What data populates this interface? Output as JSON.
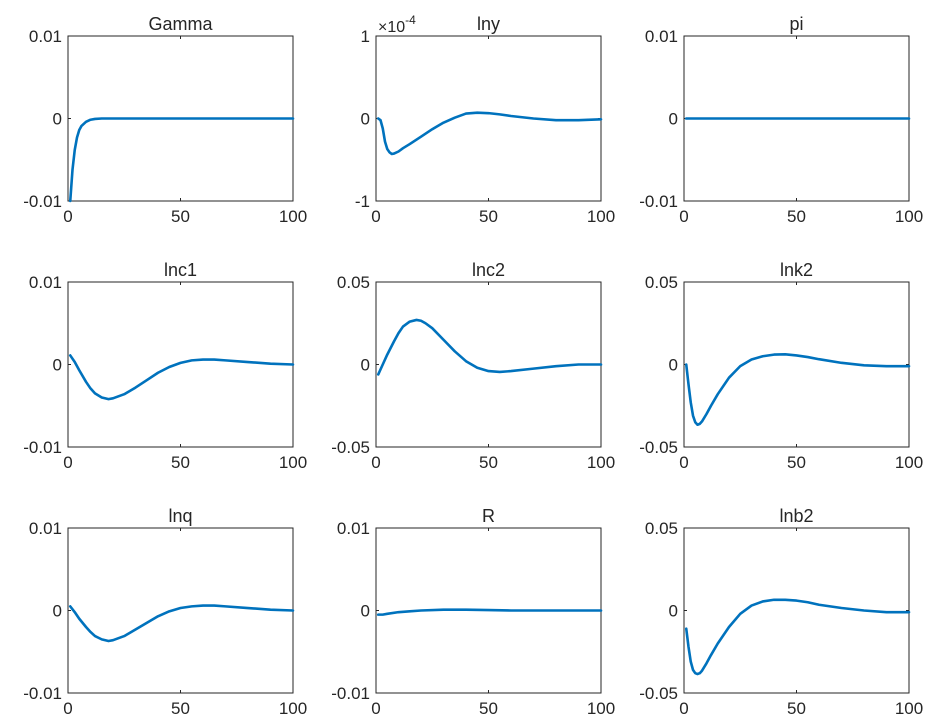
{
  "chart_data": [
    {
      "type": "line",
      "title": "Gamma",
      "xlim": [
        0,
        100
      ],
      "ylim": [
        -0.01,
        0.01
      ],
      "xticks": [
        0,
        50,
        100
      ],
      "xtick_labels": [
        "0",
        "50",
        "100"
      ],
      "yticks": [
        -0.01,
        0,
        0.01
      ],
      "ytick_labels": [
        "-0.01",
        "0",
        "0.01"
      ],
      "exponent_label": null,
      "x": [
        1,
        2,
        3,
        4,
        5,
        6,
        8,
        10,
        12,
        15,
        20,
        30,
        50,
        75,
        100
      ],
      "y": [
        -0.01,
        -0.0062,
        -0.0038,
        -0.0023,
        -0.0014,
        -0.0009,
        -0.0004,
        -0.00015,
        -5e-05,
        0,
        0,
        0,
        0,
        0,
        0
      ]
    },
    {
      "type": "line",
      "title": "lny",
      "xlim": [
        0,
        100
      ],
      "ylim": [
        -1,
        1
      ],
      "xticks": [
        0,
        50,
        100
      ],
      "xtick_labels": [
        "0",
        "50",
        "100"
      ],
      "yticks": [
        -1,
        0,
        1
      ],
      "ytick_labels": [
        "-1",
        "0",
        "1"
      ],
      "exponent_label": {
        "base": "×10",
        "power": "-4"
      },
      "x": [
        1,
        2,
        3,
        4,
        5,
        6,
        7,
        8,
        10,
        12,
        15,
        20,
        25,
        30,
        35,
        40,
        45,
        50,
        55,
        60,
        70,
        80,
        90,
        100
      ],
      "y": [
        0,
        -0.02,
        -0.12,
        -0.28,
        -0.37,
        -0.41,
        -0.43,
        -0.425,
        -0.4,
        -0.36,
        -0.31,
        -0.22,
        -0.13,
        -0.05,
        0.01,
        0.06,
        0.07,
        0.065,
        0.05,
        0.03,
        0.0,
        -0.02,
        -0.02,
        -0.01
      ]
    },
    {
      "type": "line",
      "title": "pi",
      "xlim": [
        0,
        100
      ],
      "ylim": [
        -0.01,
        0.01
      ],
      "xticks": [
        0,
        50,
        100
      ],
      "xtick_labels": [
        "0",
        "50",
        "100"
      ],
      "yticks": [
        -0.01,
        0,
        0.01
      ],
      "ytick_labels": [
        "-0.01",
        "0",
        "0.01"
      ],
      "exponent_label": null,
      "x": [
        1,
        25,
        50,
        75,
        100
      ],
      "y": [
        0,
        0,
        0,
        0,
        0
      ]
    },
    {
      "type": "line",
      "title": "lnc1",
      "xlim": [
        0,
        100
      ],
      "ylim": [
        -0.01,
        0.01
      ],
      "xticks": [
        0,
        50,
        100
      ],
      "xtick_labels": [
        "0",
        "50",
        "100"
      ],
      "yticks": [
        -0.01,
        0,
        0.01
      ],
      "ytick_labels": [
        "-0.01",
        "0",
        "0.01"
      ],
      "exponent_label": null,
      "x": [
        1,
        3,
        5,
        8,
        10,
        12,
        15,
        18,
        20,
        25,
        30,
        35,
        40,
        45,
        50,
        55,
        60,
        65,
        70,
        80,
        90,
        100
      ],
      "y": [
        0.0011,
        0.0003,
        -0.0007,
        -0.0021,
        -0.0029,
        -0.0035,
        -0.004,
        -0.0042,
        -0.0041,
        -0.0036,
        -0.0028,
        -0.0019,
        -0.001,
        -0.0003,
        0.0002,
        0.0005,
        0.0006,
        0.0006,
        0.0005,
        0.0003,
        0.0001,
        0.0
      ]
    },
    {
      "type": "line",
      "title": "lnc2",
      "xlim": [
        0,
        100
      ],
      "ylim": [
        -0.05,
        0.05
      ],
      "xticks": [
        0,
        50,
        100
      ],
      "xtick_labels": [
        "0",
        "50",
        "100"
      ],
      "yticks": [
        -0.05,
        0,
        0.05
      ],
      "ytick_labels": [
        "-0.05",
        "0",
        "0.05"
      ],
      "exponent_label": null,
      "x": [
        1,
        3,
        5,
        8,
        10,
        12,
        15,
        18,
        20,
        22,
        25,
        30,
        35,
        40,
        45,
        50,
        55,
        60,
        70,
        80,
        90,
        100
      ],
      "y": [
        -0.006,
        0.0,
        0.006,
        0.014,
        0.019,
        0.023,
        0.026,
        0.027,
        0.0265,
        0.025,
        0.022,
        0.015,
        0.008,
        0.002,
        -0.002,
        -0.004,
        -0.0045,
        -0.004,
        -0.0025,
        -0.001,
        0.0,
        0.0
      ]
    },
    {
      "type": "line",
      "title": "lnk2",
      "xlim": [
        0,
        100
      ],
      "ylim": [
        -0.05,
        0.05
      ],
      "xticks": [
        0,
        50,
        100
      ],
      "xtick_labels": [
        "0",
        "50",
        "100"
      ],
      "yticks": [
        -0.05,
        0,
        0.05
      ],
      "ytick_labels": [
        "-0.05",
        "0",
        "0.05"
      ],
      "exponent_label": null,
      "x": [
        1,
        2,
        3,
        4,
        5,
        6,
        7,
        8,
        10,
        12,
        15,
        20,
        25,
        30,
        35,
        40,
        45,
        50,
        55,
        60,
        70,
        80,
        90,
        100
      ],
      "y": [
        0.0,
        -0.012,
        -0.023,
        -0.031,
        -0.035,
        -0.0365,
        -0.036,
        -0.0345,
        -0.03,
        -0.025,
        -0.018,
        -0.008,
        -0.001,
        0.003,
        0.005,
        0.006,
        0.0062,
        0.0055,
        0.0045,
        0.0032,
        0.001,
        -0.0005,
        -0.001,
        -0.001
      ]
    },
    {
      "type": "line",
      "title": "lnq",
      "xlim": [
        0,
        100
      ],
      "ylim": [
        -0.01,
        0.01
      ],
      "xticks": [
        0,
        50,
        100
      ],
      "xtick_labels": [
        "0",
        "50",
        "100"
      ],
      "yticks": [
        -0.01,
        0,
        0.01
      ],
      "ytick_labels": [
        "-0.01",
        "0",
        "0.01"
      ],
      "exponent_label": null,
      "x": [
        1,
        3,
        5,
        8,
        10,
        12,
        15,
        18,
        20,
        25,
        30,
        35,
        40,
        45,
        50,
        55,
        60,
        65,
        70,
        80,
        90,
        100
      ],
      "y": [
        0.0005,
        -0.0002,
        -0.001,
        -0.002,
        -0.0026,
        -0.0031,
        -0.0035,
        -0.0037,
        -0.0036,
        -0.0031,
        -0.0023,
        -0.0015,
        -0.0007,
        -0.0001,
        0.0003,
        0.0005,
        0.0006,
        0.0006,
        0.0005,
        0.0003,
        0.0001,
        0.0
      ]
    },
    {
      "type": "line",
      "title": "R",
      "xlim": [
        0,
        100
      ],
      "ylim": [
        -0.01,
        0.01
      ],
      "xticks": [
        0,
        50,
        100
      ],
      "xtick_labels": [
        "0",
        "50",
        "100"
      ],
      "yticks": [
        -0.01,
        0,
        0.01
      ],
      "ytick_labels": [
        "-0.01",
        "0",
        "0.01"
      ],
      "exponent_label": null,
      "x": [
        1,
        3,
        5,
        10,
        15,
        20,
        30,
        40,
        50,
        60,
        70,
        80,
        100
      ],
      "y": [
        -0.0005,
        -0.0005,
        -0.0004,
        -0.0002,
        -0.0001,
        0.0,
        0.0001,
        0.0001,
        5e-05,
        0.0,
        0.0,
        0.0,
        0.0
      ]
    },
    {
      "type": "line",
      "title": "lnb2",
      "xlim": [
        0,
        100
      ],
      "ylim": [
        -0.05,
        0.05
      ],
      "xticks": [
        0,
        50,
        100
      ],
      "xtick_labels": [
        "0",
        "50",
        "100"
      ],
      "yticks": [
        -0.05,
        0,
        0.05
      ],
      "ytick_labels": [
        "-0.05",
        "0",
        "0.05"
      ],
      "exponent_label": null,
      "x": [
        1,
        2,
        3,
        4,
        5,
        6,
        7,
        8,
        10,
        12,
        15,
        20,
        25,
        30,
        35,
        40,
        45,
        50,
        55,
        60,
        70,
        80,
        90,
        100
      ],
      "y": [
        -0.011,
        -0.022,
        -0.031,
        -0.036,
        -0.038,
        -0.0385,
        -0.038,
        -0.0365,
        -0.032,
        -0.027,
        -0.02,
        -0.01,
        -0.002,
        0.003,
        0.0055,
        0.0065,
        0.0065,
        0.006,
        0.005,
        0.0035,
        0.0015,
        0.0,
        -0.001,
        -0.001
      ]
    }
  ],
  "colors": {
    "series": "#0072BD",
    "axes": "#262626",
    "background": "#ffffff"
  }
}
